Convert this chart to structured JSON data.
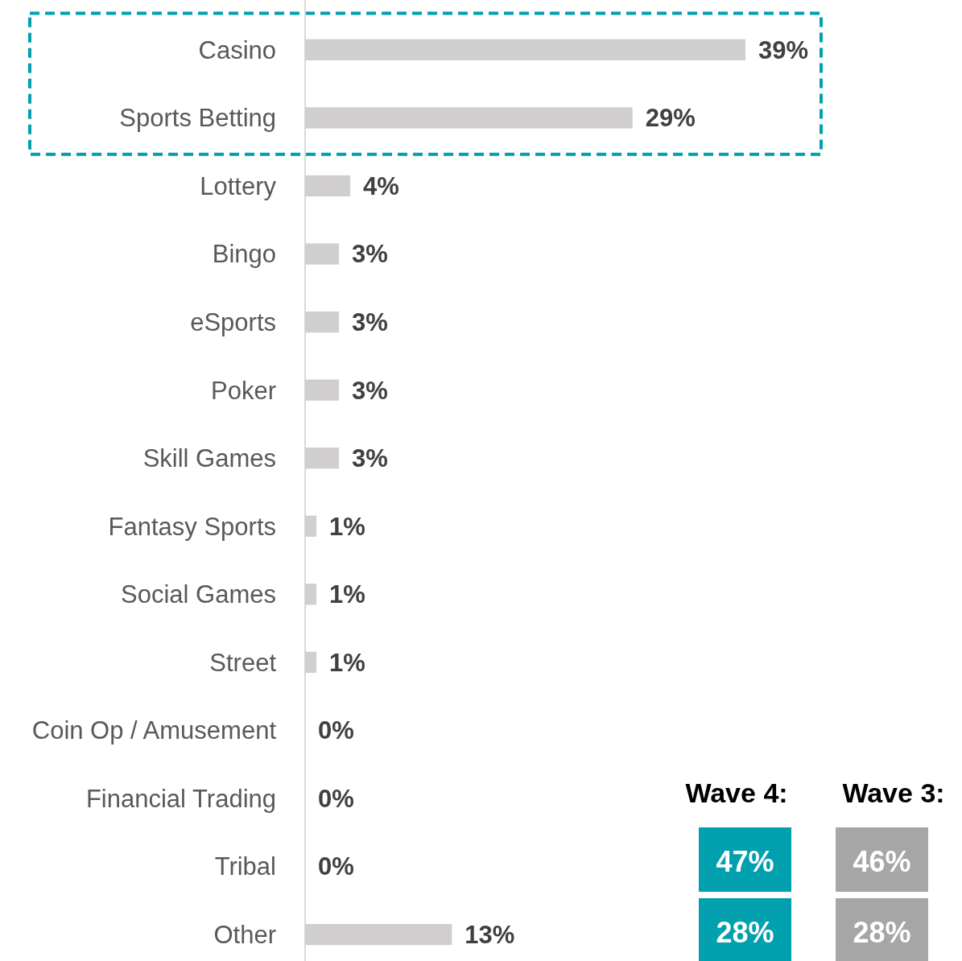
{
  "chart_data": [
    {
      "type": "bar",
      "orientation": "horizontal",
      "categories": [
        "Casino",
        "Sports Betting",
        "Lottery",
        "Bingo",
        "eSports",
        "Poker",
        "Skill Games",
        "Fantasy Sports",
        "Social Games",
        "Street",
        "Coin Op / Amusement",
        "Financial Trading",
        "Tribal",
        "Other"
      ],
      "values": [
        39,
        29,
        4,
        3,
        3,
        3,
        3,
        1,
        1,
        1,
        0,
        0,
        0,
        13
      ],
      "value_labels": [
        "39%",
        "29%",
        "4%",
        "3%",
        "3%",
        "3%",
        "3%",
        "1%",
        "1%",
        "1%",
        "0%",
        "0%",
        "0%",
        "13%"
      ],
      "color": "#d0cecf"
    },
    {
      "type": "other",
      "annotations": [
        "Wave 4:",
        "47%",
        "28%",
        "Wave 3:",
        "46%",
        "28%"
      ]
    }
  ]
}
